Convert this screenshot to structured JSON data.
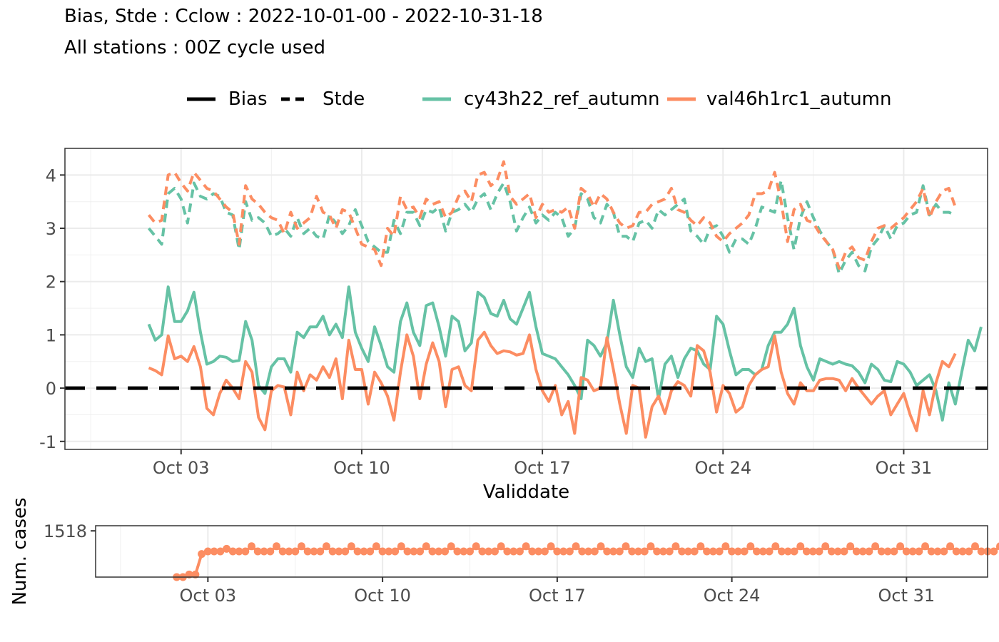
{
  "header": {
    "title": "Bias, Stde : Cclow : 2022-10-01-00 - 2022-10-31-18",
    "subtitle": "All stations : 00Z cycle used"
  },
  "legend": {
    "score_types": [
      {
        "label": "Bias",
        "style": "solid"
      },
      {
        "label": "Stde",
        "style": "dashed"
      }
    ],
    "models": [
      {
        "label": "cy43h22_ref_autumn",
        "color": "#66c2a5"
      },
      {
        "label": "val46h1rc1_autumn",
        "color": "#fc8d62"
      }
    ]
  },
  "chart_data": [
    {
      "type": "line",
      "xlabel": "Validdate",
      "ylabel": "",
      "x_ticks": [
        "Oct 03",
        "Oct 10",
        "Oct 17",
        "Oct 24",
        "Oct 31"
      ],
      "y_ticks": [
        "-1",
        "0",
        "1",
        "2",
        "3",
        "4"
      ],
      "ylim": [
        -1.15,
        4.5
      ],
      "xlim": [
        "2022-09-28T12",
        "2022-11-03T06"
      ],
      "x_start": "2022-10-01T18",
      "x_step_hours": 6,
      "grid": true,
      "legend_position": "top",
      "reference_line": {
        "y": 0,
        "style": "dashed",
        "color": "#000000"
      },
      "series": [
        {
          "name": "cy43h22_ref_autumn",
          "score": "Bias",
          "color": "#66c2a5",
          "values": [
            1.2,
            0.9,
            1.0,
            1.9,
            1.25,
            1.25,
            1.45,
            1.8,
            1.05,
            0.45,
            0.5,
            0.6,
            0.58,
            0.5,
            0.52,
            1.25,
            0.9,
            0.05,
            -0.1,
            0.4,
            0.55,
            0.55,
            0.3,
            1.05,
            0.95,
            1.15,
            1.15,
            1.35,
            1.0,
            1.2,
            0.95,
            1.9,
            1.05,
            0.75,
            0.5,
            1.15,
            0.8,
            0.4,
            0.3,
            1.25,
            1.6,
            1.05,
            0.8,
            1.55,
            1.6,
            1.15,
            0.6,
            1.35,
            1.25,
            0.7,
            0.85,
            1.8,
            1.7,
            1.4,
            1.35,
            1.65,
            1.3,
            1.2,
            1.5,
            1.8,
            1.15,
            0.65,
            0.6,
            0.55,
            0.4,
            0.25,
            0.05,
            -0.2,
            0.9,
            0.8,
            0.6,
            0.85,
            1.65,
            1.0,
            0.4,
            0.2,
            0.75,
            0.5,
            0.55,
            -0.2,
            0.45,
            0.6,
            0.2,
            0.55,
            0.75,
            0.7,
            0.45,
            0.35,
            1.35,
            1.2,
            0.7,
            0.25,
            0.35,
            0.35,
            0.25,
            0.35,
            0.8,
            1.05,
            1.05,
            1.2,
            1.5,
            0.8,
            0.4,
            0.15,
            0.55,
            0.5,
            0.45,
            0.5,
            0.45,
            0.42,
            0.3,
            0.1,
            0.45,
            0.35,
            0.15,
            0.12,
            0.5,
            0.45,
            0.3,
            0.05,
            0.15,
            0.25,
            -0.05,
            -0.6,
            0.1,
            -0.3,
            0.3,
            0.9,
            0.7,
            1.15
          ]
        },
        {
          "name": "val46h1rc1_autumn",
          "score": "Bias",
          "color": "#fc8d62",
          "values": [
            0.38,
            0.33,
            0.25,
            0.98,
            0.55,
            0.6,
            0.5,
            0.78,
            0.4,
            -0.38,
            -0.5,
            -0.1,
            0.15,
            0.0,
            -0.2,
            0.5,
            0.3,
            -0.55,
            -0.78,
            -0.05,
            0.05,
            0.02,
            -0.5,
            0.3,
            -0.05,
            0.25,
            0.15,
            0.4,
            0.2,
            0.55,
            -0.2,
            0.9,
            0.35,
            0.35,
            -0.3,
            0.3,
            0.1,
            -0.15,
            -0.6,
            0.3,
            1.0,
            0.6,
            -0.2,
            0.45,
            0.85,
            0.5,
            -0.35,
            0.35,
            0.4,
            0.05,
            -0.05,
            0.9,
            1.05,
            0.8,
            0.65,
            0.7,
            0.68,
            0.62,
            0.65,
            1.0,
            0.35,
            -0.05,
            -0.25,
            0.05,
            -0.5,
            -0.25,
            -0.85,
            0.2,
            0.15,
            -0.05,
            0.0,
            0.95,
            0.35,
            -0.3,
            -0.85,
            0.05,
            0.0,
            -0.92,
            -0.35,
            -0.15,
            -0.48,
            -0.05,
            0.12,
            0.05,
            -0.15,
            0.8,
            0.7,
            0.3,
            -0.45,
            0.05,
            -0.1,
            -0.45,
            -0.35,
            0.05,
            0.25,
            0.35,
            0.4,
            0.98,
            0.3,
            -0.1,
            -0.3,
            0.1,
            -0.05,
            -0.05,
            0.15,
            0.18,
            0.18,
            0.15,
            -0.05,
            0.18,
            0.0,
            -0.15,
            -0.3,
            -0.15,
            -0.05,
            -0.5,
            -0.3,
            -0.1,
            -0.5,
            -0.8,
            -0.05,
            -0.5,
            0.1,
            0.5,
            0.4,
            0.65
          ]
        },
        {
          "name": "cy43h22_ref_autumn",
          "score": "Stde",
          "color": "#66c2a5",
          "values": [
            3.0,
            2.85,
            2.7,
            3.65,
            3.75,
            3.55,
            3.1,
            3.85,
            3.6,
            3.55,
            3.65,
            3.6,
            3.3,
            3.25,
            2.6,
            3.5,
            3.15,
            3.2,
            3.1,
            2.85,
            2.9,
            3.0,
            2.85,
            3.2,
            2.9,
            3.0,
            2.85,
            2.8,
            3.25,
            3.1,
            2.9,
            3.05,
            3.35,
            3.05,
            2.75,
            2.65,
            2.55,
            2.55,
            3.15,
            2.9,
            3.3,
            3.3,
            3.05,
            3.35,
            3.3,
            3.4,
            2.95,
            3.3,
            3.35,
            3.45,
            3.3,
            3.55,
            3.65,
            3.35,
            3.65,
            3.85,
            3.5,
            2.95,
            3.2,
            3.4,
            3.1,
            3.25,
            3.15,
            3.3,
            3.2,
            2.85,
            3.0,
            3.65,
            3.55,
            3.2,
            3.1,
            3.45,
            3.3,
            2.85,
            2.85,
            2.75,
            3.1,
            3.15,
            3.0,
            3.35,
            3.25,
            3.35,
            3.45,
            3.55,
            2.95,
            2.85,
            2.7,
            3.0,
            3.05,
            2.85,
            2.55,
            2.8,
            2.8,
            2.7,
            3.0,
            3.4,
            3.35,
            3.3,
            3.9,
            3.2,
            2.6,
            3.2,
            3.5,
            3.2,
            2.95,
            2.75,
            2.6,
            2.15,
            2.4,
            2.55,
            2.3,
            2.2,
            2.65,
            2.8,
            3.05,
            2.8,
            3.05,
            3.1,
            3.25,
            3.3,
            3.8,
            3.25,
            3.45,
            3.3,
            3.3,
            3.25
          ]
        },
        {
          "name": "val46h1rc1_autumn",
          "score": "Stde",
          "color": "#fc8d62",
          "values": [
            3.25,
            3.1,
            3.15,
            4.0,
            4.05,
            3.85,
            3.7,
            4.05,
            3.9,
            3.75,
            3.7,
            3.55,
            3.4,
            3.3,
            2.7,
            3.8,
            3.55,
            3.45,
            3.3,
            3.2,
            3.15,
            2.9,
            3.3,
            3.0,
            3.1,
            3.2,
            3.6,
            3.3,
            3.25,
            3.0,
            3.35,
            3.3,
            3.0,
            2.7,
            2.65,
            2.6,
            2.3,
            3.0,
            2.85,
            3.6,
            3.35,
            3.4,
            3.2,
            3.55,
            3.45,
            3.5,
            3.2,
            3.3,
            3.6,
            3.7,
            3.5,
            4.0,
            4.05,
            3.8,
            3.9,
            4.25,
            3.6,
            3.45,
            3.55,
            3.65,
            3.2,
            3.45,
            3.3,
            3.35,
            3.3,
            3.4,
            3.0,
            3.75,
            3.65,
            3.4,
            3.65,
            3.55,
            3.3,
            3.1,
            3.0,
            3.05,
            3.3,
            3.3,
            3.45,
            3.5,
            3.55,
            3.75,
            3.35,
            3.3,
            3.15,
            3.05,
            3.2,
            3.1,
            2.85,
            2.75,
            2.9,
            3.0,
            3.1,
            3.25,
            3.65,
            3.65,
            3.7,
            4.05,
            3.5,
            2.75,
            3.35,
            3.45,
            3.15,
            3.1,
            2.9,
            2.75,
            2.6,
            2.25,
            2.55,
            2.65,
            2.45,
            2.4,
            2.75,
            3.0,
            3.05,
            3.0,
            3.1,
            3.2,
            3.35,
            3.5,
            3.75,
            3.2,
            3.5,
            3.7,
            3.75,
            3.4
          ]
        }
      ]
    },
    {
      "type": "line",
      "ylabel": "Num. cases",
      "x_ticks": [
        "Oct 03",
        "Oct 10",
        "Oct 17",
        "Oct 24",
        "Oct 31"
      ],
      "y_ticks": [
        "1518"
      ],
      "ylim": [
        1500,
        1520
      ],
      "xlim": [
        "2022-09-28T12",
        "2022-11-03T06"
      ],
      "x_start": "2022-10-01T18",
      "x_step_hours": 6,
      "markers": true,
      "series": [
        {
          "name": "val46h1rc1_autumn",
          "color": "#fc8d62",
          "values": [
            1500,
            1500,
            1501,
            1501,
            1509,
            1510,
            1510,
            1510,
            1511,
            1510,
            1510,
            1510,
            1512,
            1510,
            1510,
            1510,
            1512,
            1510,
            1510,
            1510,
            1512,
            1510,
            1510,
            1510,
            1512,
            1510,
            1510,
            1510,
            1512,
            1510,
            1510,
            1510,
            1512,
            1510,
            1510,
            1510,
            1512,
            1510,
            1510,
            1510,
            1512,
            1510,
            1510,
            1510,
            1512,
            1510,
            1510,
            1510,
            1512,
            1510,
            1510,
            1510,
            1512,
            1510,
            1510,
            1510,
            1512,
            1510,
            1510,
            1510,
            1512,
            1510,
            1510,
            1510,
            1512,
            1510,
            1510,
            1510,
            1512,
            1510,
            1510,
            1510,
            1512,
            1510,
            1510,
            1510,
            1512,
            1510,
            1510,
            1510,
            1512,
            1510,
            1510,
            1510,
            1512,
            1510,
            1510,
            1510,
            1512,
            1510,
            1510,
            1510,
            1512,
            1510,
            1510,
            1510,
            1512,
            1510,
            1510,
            1510,
            1512,
            1510,
            1510,
            1510,
            1512,
            1510,
            1510,
            1510,
            1512,
            1510,
            1510,
            1510,
            1512,
            1510,
            1510,
            1510,
            1512,
            1510,
            1510,
            1510,
            1512,
            1510,
            1510,
            1510,
            1512,
            1510,
            1510,
            1510,
            1512,
            1510,
            1510,
            1510,
            1512,
            1510,
            1510,
            1510,
            1512,
            1510,
            1510,
            1510,
            1512,
            1510,
            1510,
            1510,
            1512,
            1510,
            1510,
            1510,
            1512,
            1510,
            1510,
            1510,
            1512,
            1508,
            1510,
            1509,
            1501,
            1501,
            1501,
            1500
          ]
        }
      ]
    }
  ]
}
